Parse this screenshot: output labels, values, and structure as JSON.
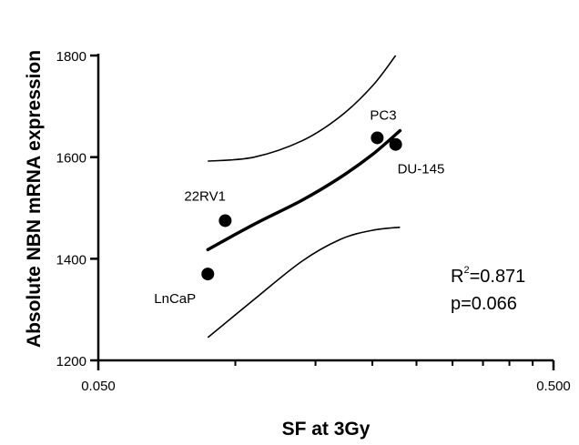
{
  "chart_data": {
    "type": "scatter",
    "xlabel": "SF at 3Gy",
    "ylabel": "Absolute NBN mRNA expression",
    "xscale": "log",
    "xlim": [
      0.05,
      0.5
    ],
    "ylim": [
      1200,
      1800
    ],
    "x_tick_labels": [
      "0.050",
      "0.500"
    ],
    "y_ticks": [
      1200,
      1400,
      1600,
      1800
    ],
    "y_tick_labels": [
      "1200",
      "1400",
      "1600",
      "1800"
    ],
    "grid": false,
    "points": [
      {
        "label": "LnCaP",
        "x": 0.087,
        "y": 1370
      },
      {
        "label": "22RV1",
        "x": 0.095,
        "y": 1475
      },
      {
        "label": "PC3",
        "x": 0.205,
        "y": 1638
      },
      {
        "label": "DU-145",
        "x": 0.225,
        "y": 1625
      }
    ],
    "fit_line": {
      "x": [
        0.087,
        0.11,
        0.14,
        0.17,
        0.2,
        0.23
      ],
      "y": [
        1418,
        1468,
        1515,
        1560,
        1605,
        1652
      ]
    },
    "ci_upper": {
      "x": [
        0.087,
        0.11,
        0.14,
        0.17,
        0.2,
        0.225
      ],
      "y": [
        1592,
        1600,
        1632,
        1680,
        1740,
        1800
      ]
    },
    "ci_lower": {
      "x": [
        0.087,
        0.11,
        0.14,
        0.17,
        0.2,
        0.23
      ],
      "y": [
        1245,
        1320,
        1395,
        1438,
        1456,
        1462
      ]
    },
    "annotations": {
      "r2_prefix": "R",
      "r2_superscript": "2",
      "r2_value": "=0.871",
      "p_value": "p=0.066"
    },
    "colors": {
      "points": "#000000",
      "lines": "#000000",
      "axes": "#000000"
    }
  }
}
